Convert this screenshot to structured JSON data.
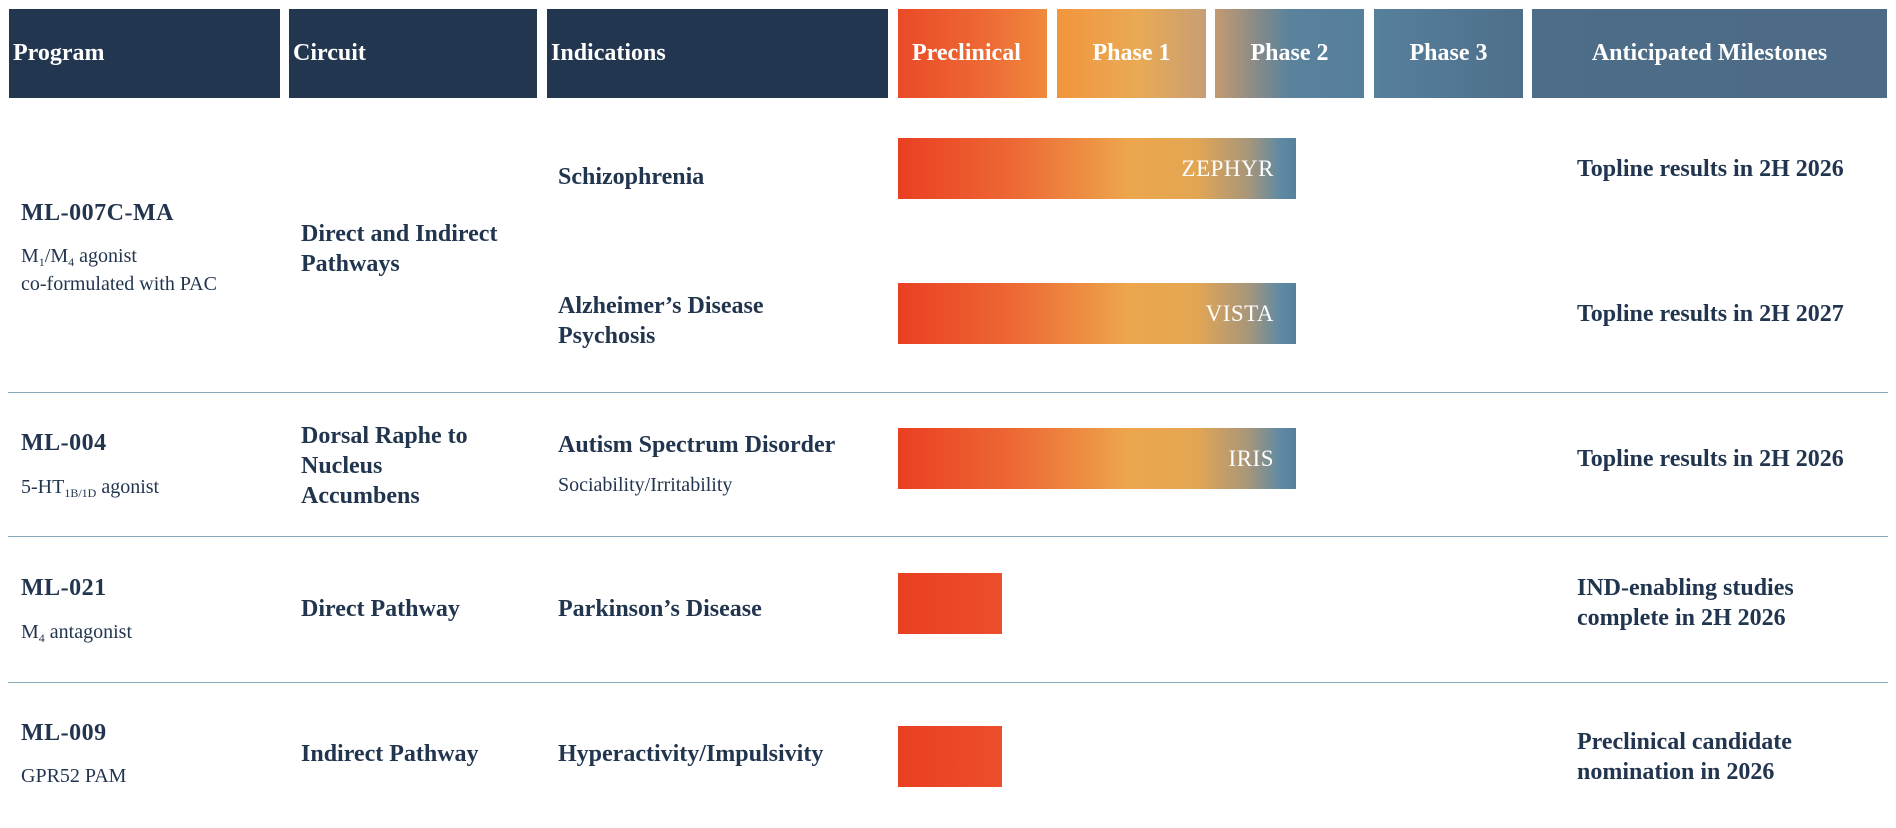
{
  "header": {
    "program": "Program",
    "circuit": "Circuit",
    "indications": "Indications",
    "preclinical": "Preclinical",
    "phase1": "Phase 1",
    "phase2": "Phase 2",
    "phase3": "Phase 3",
    "milestones": "Anticipated Milestones"
  },
  "colors": {
    "navy": "#23364f",
    "orange": "#ea4a27",
    "gold": "#eda64c",
    "steel": "#567f9b",
    "separator": "#8aa9b9"
  },
  "programs": [
    {
      "name": "ML-007C-MA",
      "desc_a_main": "M",
      "desc_a_sub1": "1",
      "desc_a_mid": "/M",
      "desc_a_sub2": "4",
      "desc_a_tail": " agonist",
      "desc_b": "co-formulated with PAC",
      "circuit_line1": "Direct and Indirect",
      "circuit_line2": "Pathways",
      "indications": [
        {
          "line1": "Schizophrenia",
          "trial": "ZEPHYR",
          "stage": "Phase 2",
          "milestone": "Topline results in 2H 2026"
        },
        {
          "line1": "Alzheimer’s Disease",
          "line2": "Psychosis",
          "trial": "VISTA",
          "stage": "Phase 2",
          "milestone": "Topline results in 2H 2027"
        }
      ]
    },
    {
      "name": "ML-004",
      "desc_a_main": "5-HT",
      "desc_a_sub1": "1B/1D",
      "desc_a_tail": " agonist",
      "circuit_line1": "Dorsal Raphe to",
      "circuit_line2": "Nucleus",
      "circuit_line3": "Accumbens",
      "indications": [
        {
          "line1": "Autism Spectrum Disorder",
          "sub": "Sociability/Irritability",
          "trial": "IRIS",
          "stage": "Phase 2",
          "milestone": "Topline results in 2H 2026"
        }
      ]
    },
    {
      "name": "ML-021",
      "desc_a_main": "M",
      "desc_a_sub1": "4",
      "desc_a_tail": " antagonist",
      "circuit_line1": "Direct Pathway",
      "indications": [
        {
          "line1": "Parkinson’s Disease",
          "stage": "Preclinical",
          "milestone_line1": "IND-enabling studies",
          "milestone_line2": "complete in 2H 2026"
        }
      ]
    },
    {
      "name": "ML-009",
      "desc_a_main": "GPR52 PAM",
      "circuit_line1": "Indirect Pathway",
      "indications": [
        {
          "line1": "Hyperactivity/Impulsivity",
          "stage": "Preclinical",
          "milestone_line1": "Preclinical candidate",
          "milestone_line2": "nomination in 2026"
        }
      ]
    }
  ]
}
